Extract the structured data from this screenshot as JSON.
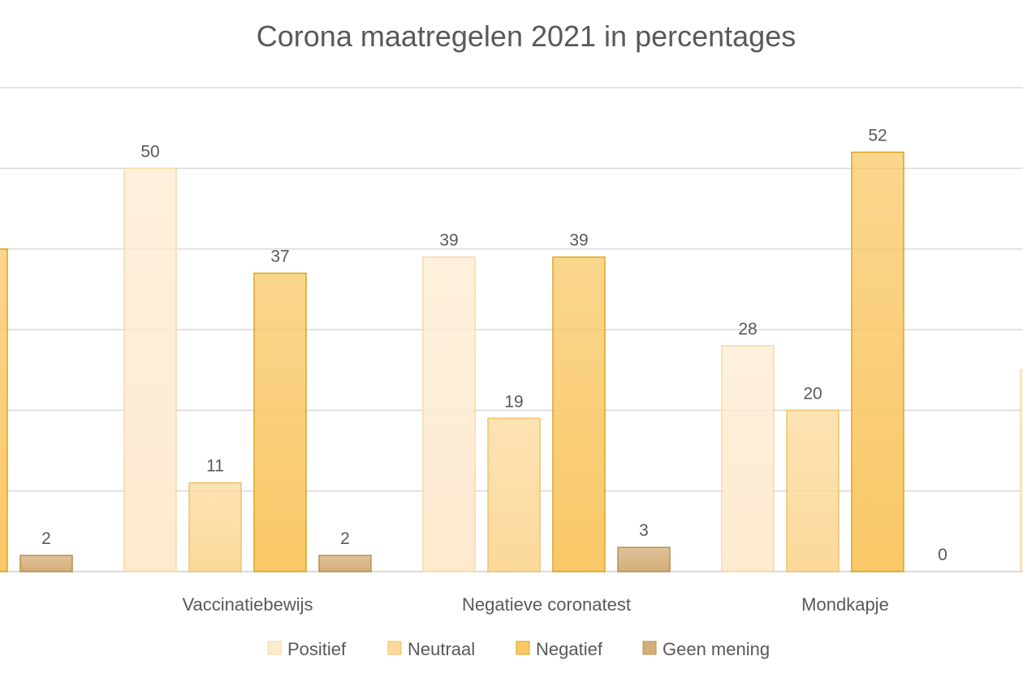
{
  "chart_data": {
    "type": "bar",
    "title": "Corona maatregelen 2021 in percentages",
    "xlabel": "",
    "ylabel": "",
    "ylim": [
      0,
      60
    ],
    "grid": true,
    "legend_position": "bottom",
    "categories": [
      "",
      "Vaccinatiebewijs",
      "Negatieve coronatest",
      "Mondkapje",
      ""
    ],
    "series": [
      {
        "name": "Positief",
        "color": "#fdebd0",
        "stroke": "#f6d9a8",
        "values": [
          null,
          50,
          39,
          28,
          25
        ]
      },
      {
        "name": "Neutraal",
        "color": "#fcd99a",
        "stroke": "#f0c26a",
        "values": [
          null,
          11,
          19,
          20,
          null
        ]
      },
      {
        "name": "Negatief",
        "color": "#f9c867",
        "stroke": "#d9a520",
        "values": [
          40,
          37,
          39,
          52,
          null
        ]
      },
      {
        "name": "Geen mening",
        "color": "#d4ae7a",
        "stroke": "#b8904e",
        "values": [
          2,
          2,
          3,
          0,
          null
        ]
      }
    ],
    "data_labels": [
      [
        null,
        "50",
        "39",
        "28",
        null
      ],
      [
        null,
        "11",
        "19",
        "20",
        null
      ],
      [
        null,
        "37",
        "39",
        "52",
        null
      ],
      [
        "2",
        "2",
        "3",
        "0",
        null
      ]
    ]
  }
}
